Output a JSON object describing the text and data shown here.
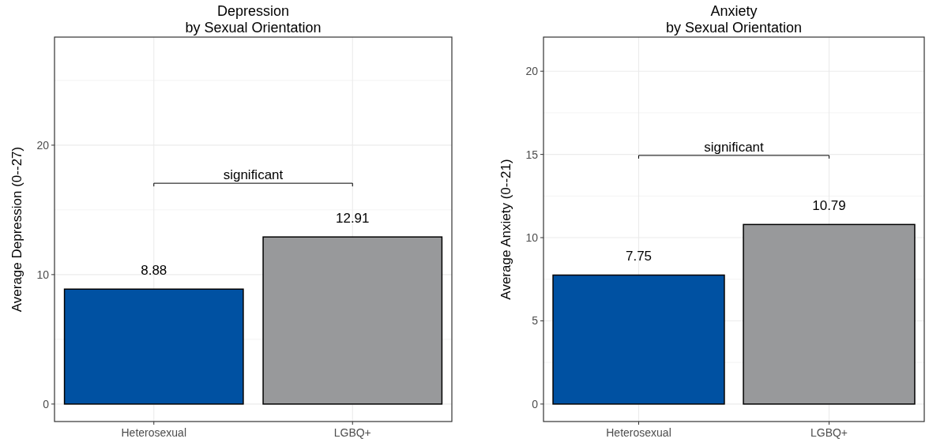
{
  "chart_data": [
    {
      "type": "bar",
      "title": "Depression\nby Sexual Orientation",
      "ylabel": "Average Depression (0--27)",
      "categories": [
        "Heterosexual",
        "LGBQ+"
      ],
      "values": [
        8.88,
        12.91
      ],
      "colors": [
        "#0051a2",
        "#98999b"
      ],
      "data_labels": true,
      "ylim": [
        -1.35,
        28.35
      ],
      "yticks": [
        0,
        10,
        20
      ],
      "grid": true,
      "annotations": [
        "significant"
      ]
    },
    {
      "type": "bar",
      "title": "Anxiety\nby Sexual Orientation",
      "ylabel": "Average Anxiety (0--21)",
      "categories": [
        "Heterosexual",
        "LGBQ+"
      ],
      "values": [
        7.75,
        10.79
      ],
      "colors": [
        "#0051a2",
        "#98999b"
      ],
      "data_labels": true,
      "ylim": [
        -1.05,
        22.05
      ],
      "yticks": [
        0,
        5,
        10,
        15,
        20
      ],
      "grid": true,
      "annotations": [
        "significant"
      ]
    }
  ]
}
